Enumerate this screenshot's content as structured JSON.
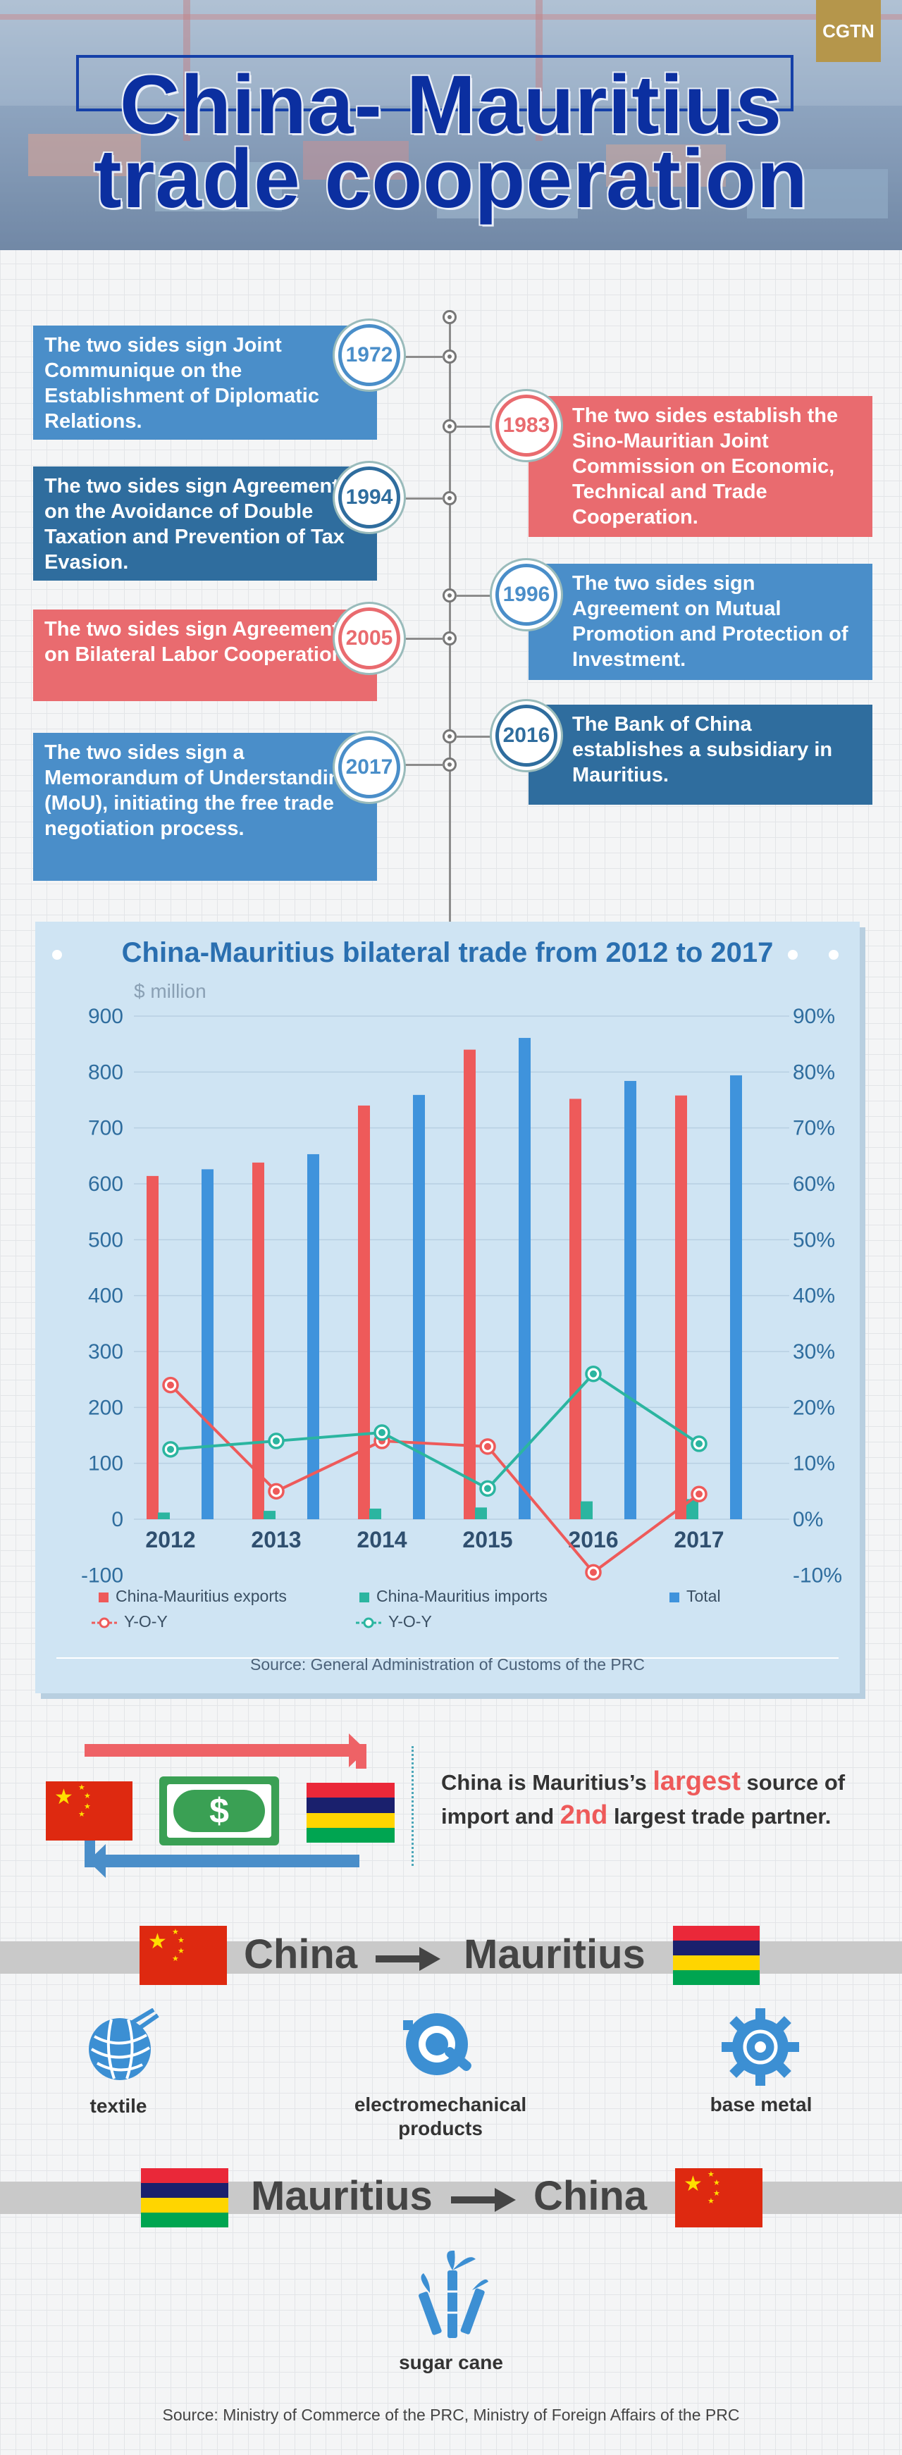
{
  "header": {
    "title_line1": "China- Mauritius",
    "title_line2": "trade cooperation",
    "logo": "CGTN"
  },
  "timeline": [
    {
      "year": "1972",
      "side": "left",
      "color": "#4a8ec9",
      "text": "The two sides sign Joint Communique on the Establishment of Diplomatic Relations."
    },
    {
      "year": "1983",
      "side": "right",
      "color": "#e96b6f",
      "text": "The two sides establish the Sino-Mauritian Joint Commission on Economic, Technical and Trade Cooperation."
    },
    {
      "year": "1994",
      "side": "left",
      "color": "#2f6d9e",
      "text": "The two sides sign Agreement on the Avoidance of Double Taxation and Prevention of Tax Evasion."
    },
    {
      "year": "1996",
      "side": "right",
      "color": "#4a8ec9",
      "text": "The two sides sign Agreement on Mutual Promotion and Protection of Investment."
    },
    {
      "year": "2005",
      "side": "left",
      "color": "#e96b6f",
      "text": "The two sides sign Agreement on Bilateral Labor Cooperation."
    },
    {
      "year": "2016",
      "side": "right",
      "color": "#2f6d9e",
      "text": "The Bank of China establishes a subsidiary in Mauritius."
    },
    {
      "year": "2017",
      "side": "left",
      "color": "#4a8ec9",
      "text": "The two sides sign a Memorandum of Understanding (MoU), initiating the free trade negotiation process."
    }
  ],
  "chart_data": {
    "type": "bar",
    "title": "China-Mauritius bilateral trade from 2012 to 2017",
    "ylabel": "$ million",
    "categories": [
      "2012",
      "2013",
      "2014",
      "2015",
      "2016",
      "2017"
    ],
    "ylim": [
      -100,
      900
    ],
    "y2lim": [
      -10,
      90
    ],
    "yticks": [
      "-100",
      "0",
      "100",
      "200",
      "300",
      "400",
      "500",
      "600",
      "700",
      "800",
      "900"
    ],
    "y2ticks": [
      "-10%",
      "0%",
      "10%",
      "20%",
      "30%",
      "40%",
      "50%",
      "60%",
      "70%",
      "80%",
      "90%"
    ],
    "series": [
      {
        "name": "China-Mauritius exports",
        "kind": "bar",
        "color": "#ee5a5a",
        "values": [
          614,
          638,
          740,
          840,
          752,
          758
        ]
      },
      {
        "name": "China-Mauritius imports",
        "kind": "bar",
        "color": "#2bb5a0",
        "values": [
          12,
          15,
          19,
          21,
          32,
          36
        ]
      },
      {
        "name": "Total",
        "kind": "bar",
        "color": "#3f93dc",
        "values": [
          626,
          653,
          759,
          861,
          784,
          794
        ]
      },
      {
        "name": "Y-O-Y",
        "kind": "line",
        "axis": "right",
        "color": "#ee5a5a",
        "values": [
          24,
          5,
          14,
          13,
          -9.5,
          4.5
        ]
      },
      {
        "name": "Y-O-Y",
        "kind": "line",
        "axis": "right",
        "color": "#2bb5a0",
        "values": [
          12.5,
          14,
          15.5,
          5.5,
          26,
          13.5
        ]
      }
    ],
    "source": "Source: General Administration of Customs of the PRC",
    "legend_position": "bottom",
    "grid": true
  },
  "trade": {
    "statement_part1": "China is Mauritius’s ",
    "statement_highlight1": "largest",
    "statement_part2": " source of import and ",
    "statement_highlight2": "2nd",
    "statement_part3": " largest trade partner.",
    "dollar_symbol": "$"
  },
  "exports": {
    "from": "China",
    "to": "Mauritius",
    "items": [
      {
        "label": "textile",
        "icon": "yarn-ball-icon"
      },
      {
        "label": "electromechanical products",
        "icon": "gear-wrench-icon"
      },
      {
        "label": "base metal",
        "icon": "cog-icon"
      }
    ]
  },
  "imports": {
    "from": "Mauritius",
    "to": "China",
    "items": [
      {
        "label": "sugar cane",
        "icon": "sugar-cane-icon"
      }
    ]
  },
  "footer": {
    "source": "Source: Ministry of Commerce of the PRC, Ministry of Foreign Affairs of the PRC"
  },
  "colors": {
    "blue": "#4a8ec9",
    "dark_blue": "#2f6d9e",
    "red": "#e96b6f",
    "teal": "#2bb5a0",
    "flag_red": "#de2910",
    "mu_red": "#ea2839",
    "mu_blue": "#1a206d",
    "mu_yellow": "#ffd500",
    "mu_green": "#00a551"
  }
}
